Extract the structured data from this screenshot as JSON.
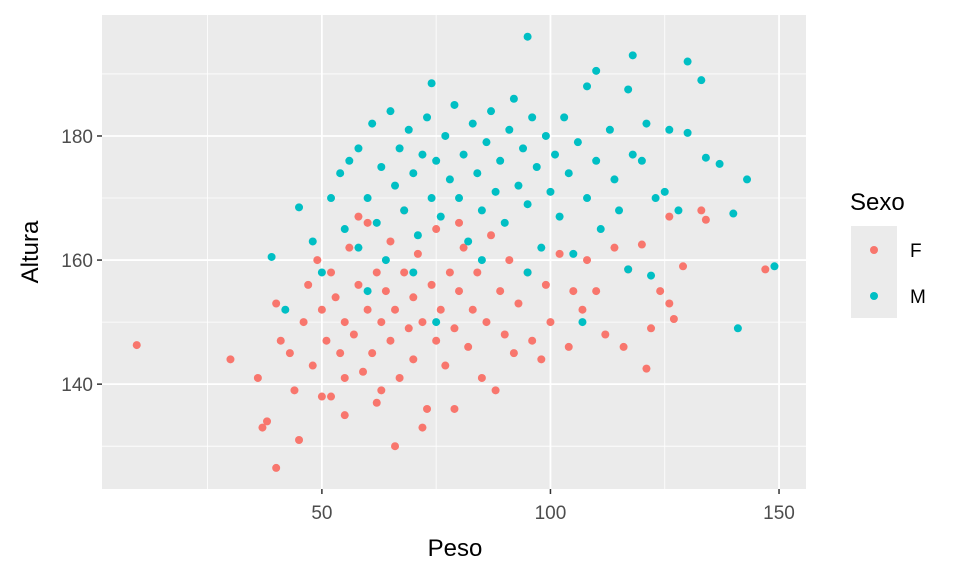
{
  "chart_data": {
    "type": "scatter",
    "x_label": "Peso",
    "y_label": "Altura",
    "legend_title": "Sexo",
    "legend": "right",
    "xlim": [
      1.9,
      155.9
    ],
    "ylim": [
      123.1,
      199.5
    ],
    "xticks": [
      50,
      100,
      150
    ],
    "yticks": [
      140,
      160,
      180
    ],
    "x_minor_grid": [
      25,
      75,
      125
    ],
    "y_minor_grid": [
      130,
      150,
      170,
      190
    ],
    "grid": true,
    "series": [
      {
        "name": "F",
        "color": "#F8766D",
        "x": [
          9.5,
          30,
          36,
          37,
          38,
          40,
          40,
          41,
          43,
          44,
          45,
          46,
          47,
          48,
          49,
          50,
          51,
          52,
          52,
          53,
          54,
          55,
          55,
          56,
          57,
          58,
          59,
          60,
          60,
          61,
          62,
          62,
          63,
          64,
          65,
          65,
          66,
          66,
          67,
          68,
          69,
          70,
          70,
          71,
          72,
          73,
          74,
          75,
          75,
          76,
          77,
          78,
          79,
          80,
          81,
          82,
          83,
          84,
          85,
          86,
          87,
          88,
          89,
          90,
          91,
          92,
          93,
          95,
          96,
          98,
          99,
          100,
          102,
          104,
          105,
          107,
          108,
          110,
          112,
          114,
          116,
          117,
          120,
          121,
          122,
          124,
          126,
          126,
          127,
          129,
          133,
          134,
          147,
          58,
          68,
          80,
          50,
          55,
          63,
          72,
          79
        ],
        "values": [
          146.3,
          144,
          141,
          133,
          134,
          126.5,
          153,
          147,
          145,
          139,
          131,
          150,
          156,
          143,
          160,
          152,
          147,
          138,
          158,
          154,
          145,
          150,
          135,
          162,
          148,
          156,
          142,
          152,
          166,
          145,
          158,
          137,
          150,
          155,
          147,
          163,
          130,
          152,
          141,
          158,
          149,
          154,
          144,
          161,
          150,
          136,
          156,
          147,
          165,
          152,
          143,
          158,
          149,
          155,
          162,
          146,
          152,
          158,
          141,
          150,
          164,
          139,
          155,
          148,
          160,
          145,
          153,
          158,
          147,
          144,
          156,
          150,
          161,
          146,
          155,
          152,
          160,
          155,
          148,
          162,
          146,
          158.5,
          162.5,
          142.5,
          149,
          155,
          153,
          167,
          150.5,
          159,
          168,
          166.5,
          158.5,
          167,
          168,
          166,
          138,
          141,
          139,
          133,
          136
        ]
      },
      {
        "name": "M",
        "color": "#00BFC4",
        "x": [
          39,
          42,
          45,
          48,
          50,
          52,
          54,
          55,
          56,
          58,
          58,
          60,
          61,
          62,
          63,
          64,
          65,
          66,
          67,
          68,
          69,
          70,
          71,
          72,
          73,
          74,
          74,
          75,
          76,
          77,
          78,
          79,
          80,
          81,
          82,
          83,
          84,
          85,
          86,
          87,
          88,
          89,
          90,
          91,
          92,
          93,
          94,
          95,
          95,
          96,
          97,
          98,
          99,
          100,
          101,
          102,
          103,
          104,
          105,
          106,
          107,
          108,
          108,
          110,
          110,
          111,
          113,
          114,
          115,
          117,
          117,
          118,
          118,
          120,
          121,
          122,
          123,
          125,
          126,
          128,
          130,
          130,
          133,
          134,
          137,
          140,
          141,
          143,
          149,
          70,
          85,
          60,
          95,
          75
        ],
        "values": [
          160.5,
          152,
          168.5,
          163,
          158,
          170,
          174,
          165,
          176,
          162,
          178,
          170,
          182,
          166,
          175,
          160,
          184,
          172,
          178,
          168,
          181,
          174,
          164,
          177,
          183,
          188.5,
          170,
          176,
          167,
          180,
          173,
          185,
          170,
          177,
          163,
          182,
          174,
          168,
          179,
          184,
          171,
          176,
          166,
          181,
          186,
          172,
          178,
          196,
          169,
          183,
          175,
          162,
          180,
          171,
          177,
          167,
          183,
          174,
          161,
          179,
          150,
          188,
          170,
          190.5,
          176,
          165,
          181,
          173,
          168,
          187.5,
          158.5,
          193,
          177,
          176,
          182,
          157.5,
          170,
          171,
          181,
          168,
          192,
          180.5,
          189,
          176.5,
          175.5,
          167.5,
          149,
          173,
          159,
          158,
          160,
          155,
          158,
          150
        ]
      }
    ]
  }
}
